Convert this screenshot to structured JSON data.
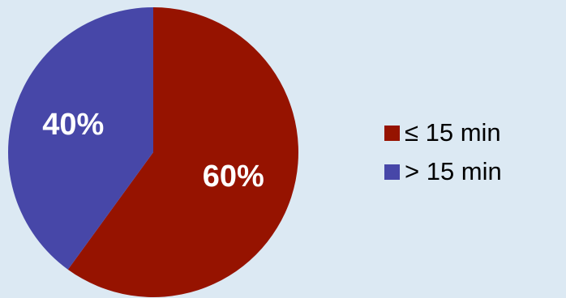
{
  "chart_data": {
    "type": "pie",
    "title": "",
    "categories": [
      "≤ 15 min",
      "> 15 min"
    ],
    "values": [
      60,
      40
    ],
    "value_labels": [
      "60%",
      "40%"
    ],
    "colors": [
      "#961300",
      "#4747a8"
    ],
    "start": "12 o'clock, clockwise",
    "legend_placement": "right"
  },
  "legend": {
    "items": [
      {
        "label": "≤ 15 min",
        "color": "#961300"
      },
      {
        "label": "> 15 min",
        "color": "#4747a8"
      }
    ]
  }
}
